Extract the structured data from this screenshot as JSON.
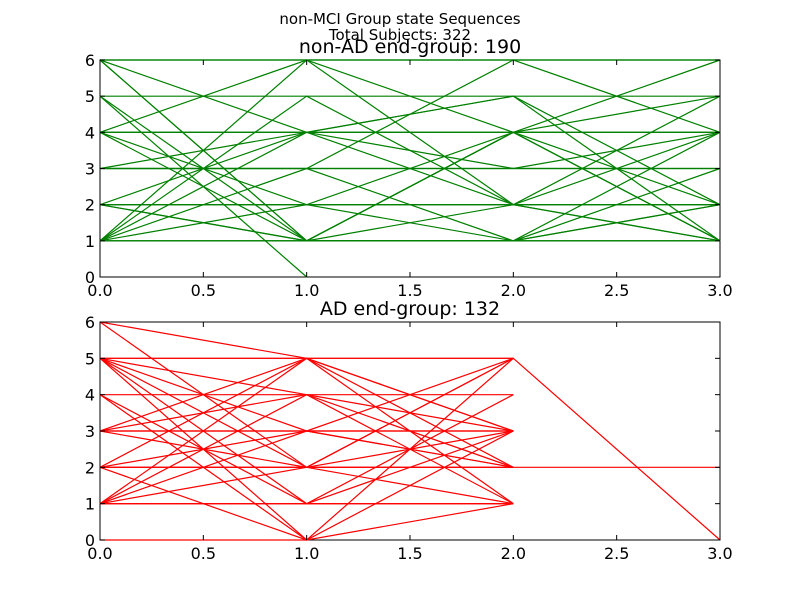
{
  "figure": {
    "suptitle_line1": "non-MCI Group state Sequences",
    "suptitle_line2": "Total Subjects: 322"
  },
  "chart_data": [
    {
      "type": "line",
      "title": "non-AD end-group: 190",
      "color": "#008000",
      "xlim": [
        0,
        3
      ],
      "ylim": [
        0,
        6
      ],
      "xticks": [
        "0.0",
        "0.5",
        "1.0",
        "1.5",
        "2.0",
        "2.5",
        "3.0"
      ],
      "yticks": [
        "0",
        "1",
        "2",
        "3",
        "4",
        "5",
        "6"
      ],
      "x": [
        0,
        1,
        2,
        3
      ],
      "sequences": [
        [
          1,
          1,
          1,
          1
        ],
        [
          1,
          1,
          1,
          1
        ],
        [
          1,
          1,
          1,
          1
        ],
        [
          2,
          2,
          2,
          2
        ],
        [
          2,
          2,
          2,
          2
        ],
        [
          2,
          2,
          2,
          2
        ],
        [
          3,
          3,
          3,
          3
        ],
        [
          3,
          3,
          3,
          3
        ],
        [
          4,
          4,
          4,
          4
        ],
        [
          4,
          4,
          4,
          4
        ],
        [
          4,
          4,
          4,
          4
        ],
        [
          6,
          6,
          6,
          6
        ],
        [
          6,
          6,
          6,
          6
        ],
        [
          5,
          5,
          5,
          5
        ],
        [
          6,
          1,
          4,
          6
        ],
        [
          6,
          4,
          2,
          1
        ],
        [
          6,
          1,
          1,
          2
        ],
        [
          5,
          1,
          4,
          5
        ],
        [
          5,
          0
        ],
        [
          4,
          1,
          1,
          4
        ],
        [
          4,
          6,
          2,
          1
        ],
        [
          4,
          2,
          1,
          3
        ],
        [
          3,
          4,
          3,
          4
        ],
        [
          3,
          3,
          6,
          4
        ],
        [
          2,
          4,
          5,
          1
        ],
        [
          2,
          1,
          2,
          4
        ],
        [
          2,
          1,
          4,
          2
        ],
        [
          1,
          2,
          4,
          1
        ],
        [
          1,
          6,
          4,
          1
        ],
        [
          1,
          5,
          2,
          5
        ],
        [
          1,
          3,
          1,
          2
        ],
        [
          1,
          4,
          5,
          2
        ]
      ]
    },
    {
      "type": "line",
      "title": "AD end-group: 132",
      "color": "#ff0000",
      "xlim": [
        0,
        3
      ],
      "ylim": [
        0,
        6
      ],
      "xticks": [
        "0.0",
        "0.5",
        "1.0",
        "1.5",
        "2.0",
        "2.5",
        "3.0"
      ],
      "yticks": [
        "0",
        "1",
        "2",
        "3",
        "4",
        "5",
        "6"
      ],
      "x": [
        0,
        1,
        2,
        3
      ],
      "sequences": [
        [
          1,
          1,
          1
        ],
        [
          1,
          1,
          1
        ],
        [
          1,
          1,
          1
        ],
        [
          2,
          2,
          2
        ],
        [
          2,
          2,
          2
        ],
        [
          3,
          3,
          3
        ],
        [
          3,
          3,
          3
        ],
        [
          4,
          4,
          4
        ],
        [
          5,
          5,
          5
        ],
        [
          5,
          5,
          5
        ],
        [
          0,
          0
        ],
        [
          2,
          2,
          2,
          2
        ],
        [
          6,
          5,
          3
        ],
        [
          6,
          2,
          5,
          0
        ],
        [
          5,
          0,
          3
        ],
        [
          5,
          2,
          1
        ],
        [
          5,
          3,
          2
        ],
        [
          5,
          1,
          4
        ],
        [
          5,
          4,
          2
        ],
        [
          4,
          0,
          5
        ],
        [
          4,
          1,
          3
        ],
        [
          3,
          5,
          1
        ],
        [
          3,
          2,
          5
        ],
        [
          3,
          4,
          3
        ],
        [
          2,
          5,
          2
        ],
        [
          2,
          0,
          1
        ],
        [
          2,
          3,
          5
        ],
        [
          1,
          5,
          3
        ],
        [
          1,
          3,
          2
        ],
        [
          1,
          4,
          1
        ],
        [
          1,
          2,
          3
        ]
      ]
    }
  ]
}
